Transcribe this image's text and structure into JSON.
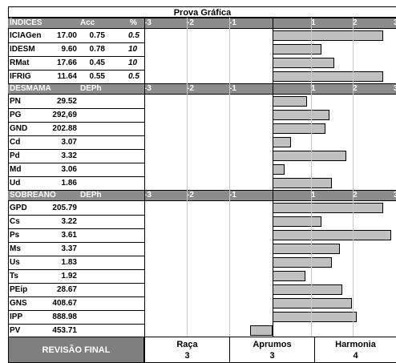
{
  "title": "Prova Gráfica",
  "sections": [
    {
      "header": {
        "label": "ÍNDICES",
        "col1": "Acc",
        "col2": "%"
      },
      "ticks": [
        "-3",
        "-2",
        "-1",
        "1",
        "2",
        "3"
      ],
      "rows": [
        {
          "name": "ICIAGen",
          "value": "17.00",
          "acc": "0.75",
          "pct": "0.5",
          "score": 2.7
        },
        {
          "name": "IDESM",
          "value": "9.60",
          "acc": "0.78",
          "pct": "10",
          "score": 1.2
        },
        {
          "name": "RMat",
          "value": "17.66",
          "acc": "0.45",
          "pct": "10",
          "score": 1.5
        },
        {
          "name": "IFRIG",
          "value": "11.64",
          "acc": "0.55",
          "pct": "0.5",
          "score": 2.7
        }
      ]
    },
    {
      "header": {
        "label": "DESMAMA",
        "col1": "DEPh",
        "col2": ""
      },
      "ticks": [
        "-3",
        "-2",
        "-1",
        "1",
        "2",
        "3"
      ],
      "rows": [
        {
          "name": "PN",
          "value": "29.52",
          "score": 0.85
        },
        {
          "name": "PG",
          "value": "292,69",
          "score": 1.4
        },
        {
          "name": "GND",
          "value": "202.88",
          "score": 1.3
        },
        {
          "name": "Cd",
          "value": "3.07",
          "score": 0.45
        },
        {
          "name": "Pd",
          "value": "3.32",
          "score": 1.8
        },
        {
          "name": "Md",
          "value": "3.06",
          "score": 0.3
        },
        {
          "name": "Ud",
          "value": "1.86",
          "score": 1.45
        }
      ]
    },
    {
      "header": {
        "label": "SOBREANO",
        "col1": "DEPh",
        "col2": ""
      },
      "ticks": [
        "-3",
        "-2",
        "-1",
        "1",
        "2",
        "3"
      ],
      "rows": [
        {
          "name": "GPD",
          "value": "205.79",
          "score": 2.7
        },
        {
          "name": "Cs",
          "value": "3.22",
          "score": 1.2
        },
        {
          "name": "Ps",
          "value": "3.61",
          "score": 2.9
        },
        {
          "name": "Ms",
          "value": "3.37",
          "score": 1.65
        },
        {
          "name": "Us",
          "value": "1.83",
          "score": 1.45
        },
        {
          "name": "Ts",
          "value": "1.92",
          "score": 0.8
        },
        {
          "name": "PEip",
          "value": "28.67",
          "score": 1.7
        },
        {
          "name": "GNS",
          "value": "408.67",
          "score": 1.95
        },
        {
          "name": "IPP",
          "value": "888.98",
          "score": 2.05
        },
        {
          "name": "PV",
          "value": "453.71",
          "score": -0.55
        }
      ]
    }
  ],
  "footer": {
    "label": "REVISÃO FINAL",
    "items": [
      {
        "label": "Raça",
        "value": "3"
      },
      {
        "label": "Aprumos",
        "value": "3"
      },
      {
        "label": "Harmonia",
        "value": "4"
      }
    ]
  }
}
